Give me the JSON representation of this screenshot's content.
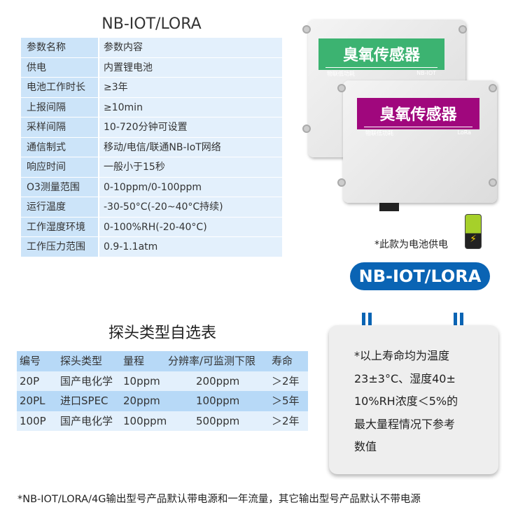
{
  "spec_table": {
    "title": "NB-IOT/LORA",
    "rows": [
      {
        "k": "参数名称",
        "v": "参数内容"
      },
      {
        "k": "供电",
        "v": "内置锂电池"
      },
      {
        "k": "电池工作时长",
        "v": "≥3年"
      },
      {
        "k": "上报间隔",
        "v": "≥10min"
      },
      {
        "k": "采样间隔",
        "v": "10-720分钟可设置"
      },
      {
        "k": "通信制式",
        "v": "移动/电信/联通NB-IoT网络"
      },
      {
        "k": "响应时间",
        "v": "一般小于15秒"
      },
      {
        "k": "O3测量范围",
        "v": "0-10ppm/0-100ppm"
      },
      {
        "k": "运行温度",
        "v": "-30-50°C(-20~40°C持续)"
      },
      {
        "k": "工作湿度环境",
        "v": "0-100%RH(-20-40°C)"
      },
      {
        "k": "工作压力范围",
        "v": "0.9-1.1atm"
      }
    ]
  },
  "probe_table": {
    "title": "探头类型自选表",
    "headers": [
      "编号",
      "探头类型",
      "量程",
      "分辨率/可监测下限",
      "寿命"
    ],
    "rows": [
      [
        "20P",
        "国产电化学",
        "10ppm",
        "200ppm",
        "＞2年"
      ],
      [
        "20PL",
        "进口SPEC",
        "20ppm",
        "100ppm",
        "＞5年"
      ],
      [
        "100P",
        "国产电化学",
        "100ppm",
        "500ppm",
        "＞2年"
      ]
    ]
  },
  "product": {
    "nb": {
      "title": "臭氧传感器",
      "sub": "物联低功耗",
      "tag": "NB-IOT",
      "color": "#3cb371"
    },
    "lora": {
      "title": "臭氧传感器",
      "sub": "物联低功耗",
      "tag": "LoRa",
      "color": "#a0077d"
    },
    "battery_note": "*此款为电池供电",
    "battery_icon": "battery-charging-icon",
    "pill": "NB-IOT/LORA",
    "pill_color": "#0a64b4"
  },
  "note": {
    "lines": [
      "*以上寿命均为温度",
      "23±3°C、湿度40±",
      "10%RH浓度＜5%的",
      "最大量程情况下参考",
      "数值"
    ]
  },
  "footer": "*NB-IOT/LORA/4G输出型号产品默认带电源和一年流量，其它输出型号产品默认不带电源"
}
